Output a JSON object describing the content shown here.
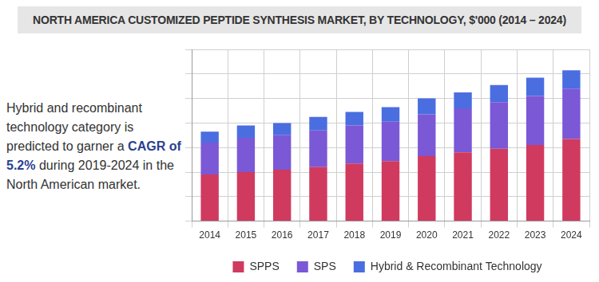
{
  "chart_data": {
    "type": "bar",
    "title": "NORTH AMERICA CUSTOMIZED PEPTIDE SYNTHESIS MARKET, BY TECHNOLOGY, $'000 (2014 – 2024)",
    "annotations": [
      {
        "text": "Hybrid and recombinant technology category is predicted to garner a CAGR of 5.2% during 2019-2024 in the North American market.",
        "highlight": "CAGR of 5.2%"
      }
    ],
    "categories": [
      "2014",
      "2015",
      "2016",
      "2017",
      "2018",
      "2019",
      "2020",
      "2021",
      "2022",
      "2023",
      "2024"
    ],
    "series": [
      {
        "name": "SPPS",
        "color": "#d03a5f",
        "values": [
          1.9,
          2.0,
          2.1,
          2.2,
          2.35,
          2.45,
          2.65,
          2.8,
          2.95,
          3.1,
          3.35
        ]
      },
      {
        "name": "SPS",
        "color": "#7b58d6",
        "values": [
          1.3,
          1.4,
          1.4,
          1.5,
          1.55,
          1.6,
          1.7,
          1.8,
          1.9,
          2.0,
          2.05
        ]
      },
      {
        "name": "Hybrid & Recombinant Technology",
        "color": "#4a6ee0",
        "values": [
          0.45,
          0.5,
          0.5,
          0.55,
          0.55,
          0.6,
          0.65,
          0.65,
          0.7,
          0.75,
          0.75
        ]
      }
    ],
    "ylim": [
      0,
      7
    ],
    "yticks": [
      0,
      1,
      2,
      3,
      4,
      5,
      6,
      7
    ],
    "stacked": true,
    "grid": true,
    "legend": "bottom",
    "tick_labels": "x"
  }
}
